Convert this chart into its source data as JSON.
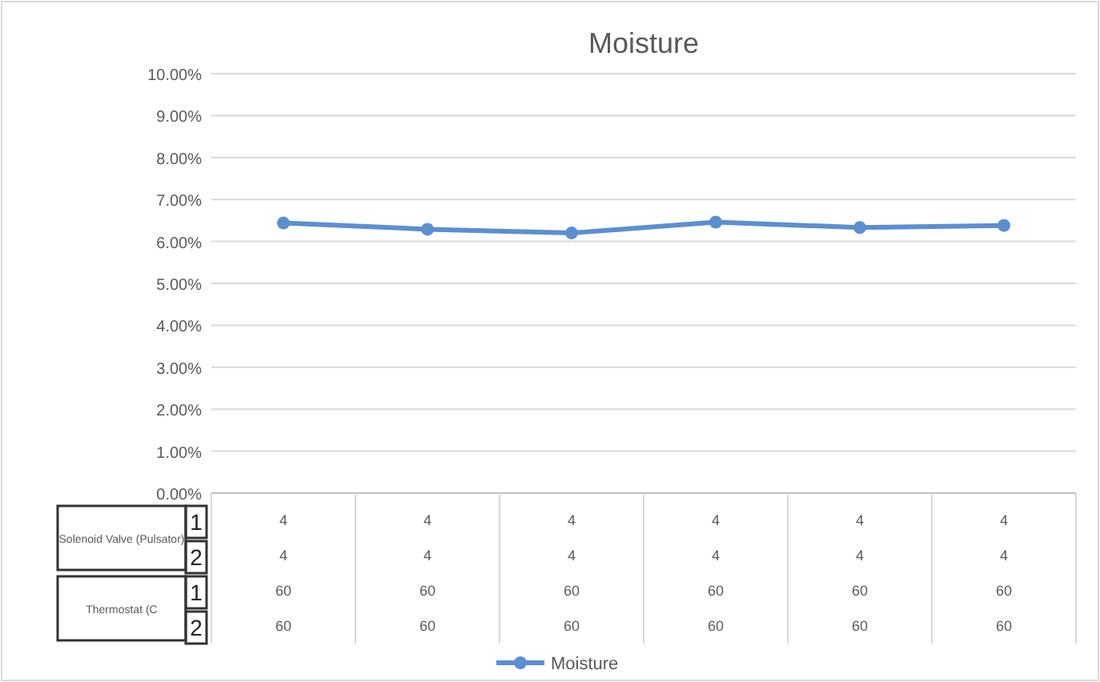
{
  "chart_data": {
    "type": "line",
    "title": "Moisture",
    "categories": [
      "4\n4\n60\n60",
      "4\n4\n60\n60",
      "4\n4\n60\n60",
      "4\n4\n60\n60",
      "4\n4\n60\n60",
      "4\n4\n60\n60"
    ],
    "series": [
      {
        "name": "Moisture",
        "color": "#5b8fd0",
        "values": [
          6.44,
          6.29,
          6.2,
          6.46,
          6.33,
          6.38
        ]
      }
    ],
    "ylim": [
      0,
      10
    ],
    "yticks": [
      {
        "value": 0,
        "label": "0.00%"
      },
      {
        "value": 1,
        "label": "1.00%"
      },
      {
        "value": 2,
        "label": "2.00%"
      },
      {
        "value": 3,
        "label": "3.00%"
      },
      {
        "value": 4,
        "label": "4.00%"
      },
      {
        "value": 5,
        "label": "5.00%"
      },
      {
        "value": 6,
        "label": "6.00%"
      },
      {
        "value": 7,
        "label": "7.00%"
      },
      {
        "value": 8,
        "label": "8.00%"
      },
      {
        "value": 9,
        "label": "9.00%"
      },
      {
        "value": 10,
        "label": "10.00%"
      }
    ],
    "annotations": [
      "Solenoid Valve (Pulsator)",
      "1",
      "2",
      "Thermostat (C",
      "1",
      "2"
    ],
    "grid": "y",
    "legend": "bottom",
    "marker": "circle",
    "line_style": "solid"
  }
}
